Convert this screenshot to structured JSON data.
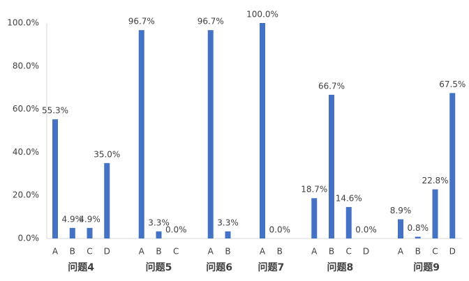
{
  "chart_data": {
    "type": "bar",
    "color": "#4472c4",
    "ylim": [
      0,
      100
    ],
    "yticks": [
      {
        "value": 0,
        "label": "0.0%"
      },
      {
        "value": 20,
        "label": "20.0%"
      },
      {
        "value": 40,
        "label": "40.0%"
      },
      {
        "value": 60,
        "label": "60.0%"
      },
      {
        "value": 80,
        "label": "80.0%"
      },
      {
        "value": 100,
        "label": "100.0%"
      }
    ],
    "groups": [
      {
        "name": "问题4",
        "categories": [
          "A",
          "B",
          "C",
          "D"
        ],
        "values": [
          55.3,
          4.9,
          4.9,
          35.0
        ],
        "value_labels": [
          "55.3%",
          "4.9%",
          "4.9%",
          "35.0%"
        ]
      },
      {
        "name": "问题5",
        "categories": [
          "A",
          "B",
          "C"
        ],
        "values": [
          96.7,
          3.3,
          0.0
        ],
        "value_labels": [
          "96.7%",
          "3.3%",
          "0.0%"
        ]
      },
      {
        "name": "问题6",
        "categories": [
          "A",
          "B"
        ],
        "values": [
          96.7,
          3.3
        ],
        "value_labels": [
          "96.7%",
          "3.3%"
        ]
      },
      {
        "name": "问题7",
        "categories": [
          "A",
          "B"
        ],
        "values": [
          100.0,
          0.0
        ],
        "value_labels": [
          "100.0%",
          "0.0%"
        ]
      },
      {
        "name": "问题8",
        "categories": [
          "A",
          "B",
          "C",
          "D"
        ],
        "values": [
          18.7,
          66.7,
          14.6,
          0.0
        ],
        "value_labels": [
          "18.7%",
          "66.7%",
          "14.6%",
          "0.0%"
        ]
      },
      {
        "name": "问题9",
        "categories": [
          "A",
          "B",
          "C",
          "D"
        ],
        "values": [
          8.9,
          0.8,
          22.8,
          67.5
        ],
        "value_labels": [
          "8.9%",
          "0.8%",
          "22.8%",
          "67.5%"
        ]
      }
    ]
  }
}
